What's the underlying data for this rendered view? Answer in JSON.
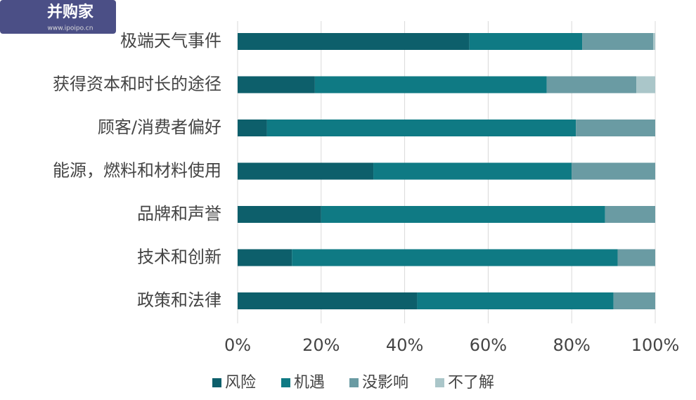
{
  "logo": {
    "title": "并购家",
    "url": "www.ipoipo.cn"
  },
  "chart_data": {
    "type": "bar",
    "orientation": "horizontal",
    "stacked": true,
    "categories": [
      "极端天气事件",
      "获得资本和时长的途径",
      "顾客/消费者偏好",
      "能源，燃料和材料使用",
      "品牌和声誉",
      "技术和创新",
      "政策和法律"
    ],
    "series": [
      {
        "name": "风险",
        "color": "#0d5f6b",
        "values": [
          55.5,
          18.5,
          7,
          32.5,
          20,
          13,
          43
        ]
      },
      {
        "name": "机遇",
        "color": "#0f7a84",
        "values": [
          27,
          55.5,
          74,
          47.5,
          68,
          78,
          47
        ]
      },
      {
        "name": "没影响",
        "color": "#6a9ba3",
        "values": [
          17,
          21.5,
          19,
          20,
          12,
          9,
          10
        ]
      },
      {
        "name": "不了解",
        "color": "#aac6c9",
        "values": [
          0.5,
          4.5,
          0,
          0,
          0,
          0,
          0
        ]
      }
    ],
    "xlim": [
      0,
      100
    ],
    "xticks": [
      {
        "value": 0,
        "label": "0%"
      },
      {
        "value": 20,
        "label": "20%"
      },
      {
        "value": 40,
        "label": "40%"
      },
      {
        "value": 60,
        "label": "60%"
      },
      {
        "value": 80,
        "label": "80%"
      },
      {
        "value": 100,
        "label": "100%"
      }
    ],
    "grid": true,
    "legend": "bottom"
  }
}
